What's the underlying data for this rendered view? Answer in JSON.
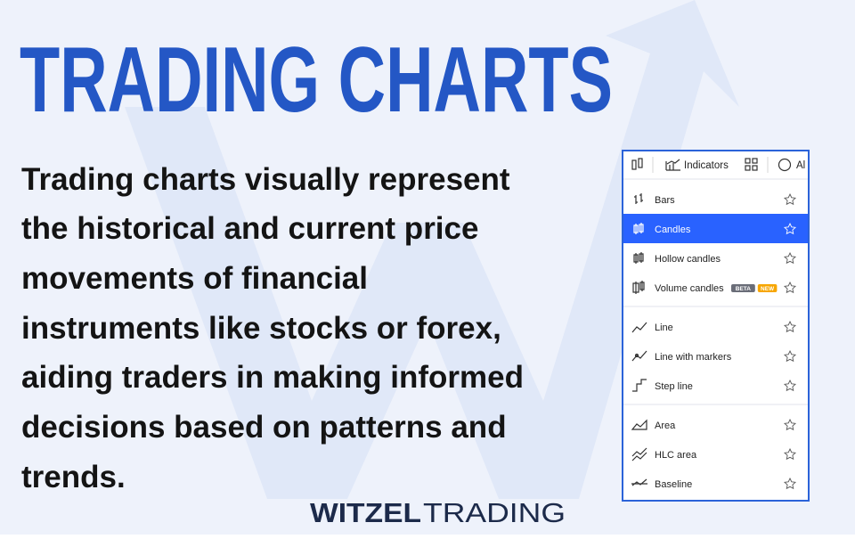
{
  "header": {
    "title": "TRADING CHARTS"
  },
  "body": {
    "lines": [
      "Trading charts visually represent",
      "the historical and current price",
      "movements of financial",
      "instruments like stocks or forex,",
      "aiding traders in making informed",
      "decisions based on patterns and",
      "trends."
    ]
  },
  "menu": {
    "toolbar": {
      "indicators": "Indicators",
      "alerts": "Al"
    },
    "groups": [
      {
        "items": [
          {
            "label": "Bars"
          },
          {
            "label": "Candles",
            "selected": true
          },
          {
            "label": "Hollow candles"
          },
          {
            "label": "Volume candles",
            "badges": [
              "BETA",
              "NEW"
            ]
          }
        ]
      },
      {
        "items": [
          {
            "label": "Line"
          },
          {
            "label": "Line with markers"
          },
          {
            "label": "Step line"
          }
        ]
      },
      {
        "items": [
          {
            "label": "Area"
          },
          {
            "label": "HLC area"
          },
          {
            "label": "Baseline"
          }
        ]
      }
    ]
  },
  "logo": {
    "brand": "WITZEL",
    "suffix": "TRADING"
  }
}
